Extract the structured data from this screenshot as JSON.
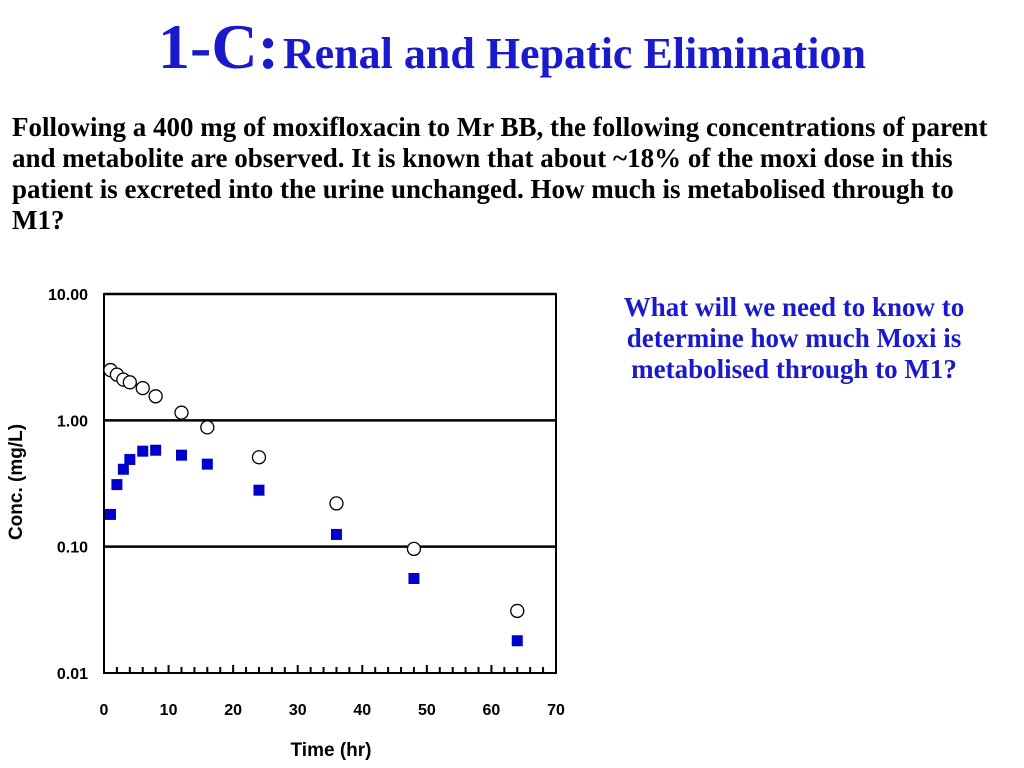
{
  "slide": {
    "title_number": "1-C:",
    "title_text": "Renal and Hepatic Elimination",
    "question": "Following a 400 mg of moxifloxacin to Mr BB, the following concentrations of parent and metabolite are observed.  It is known that about ~18% of the moxi dose in this patient is excreted into the urine unchanged.  How much is metabolised through to M1?",
    "prompt": "What will we need to know to determine how much Moxi is metabolised through to M1?"
  },
  "colors": {
    "title": "#1a1acc",
    "metabolite_marker": "#0000cc",
    "parent_marker": "#000000"
  },
  "chart_data": {
    "type": "scatter",
    "xlabel": "Time (hr)",
    "ylabel": "Conc. (mg/L)",
    "xlim": [
      0,
      70
    ],
    "ylim": [
      0.01,
      10
    ],
    "y_scale": "log",
    "x_ticks": [
      "0",
      "10",
      "20",
      "30",
      "40",
      "50",
      "60",
      "70"
    ],
    "y_ticks": [
      "0.01",
      "0.10",
      "1.00",
      "10.00"
    ],
    "gridlines_y": [
      0.1,
      1,
      10
    ],
    "legend": "none",
    "series": [
      {
        "marker": "open-circle",
        "x": [
          1,
          2,
          3,
          4,
          6,
          8,
          12,
          16,
          24,
          36,
          48,
          64
        ],
        "y": [
          2.5,
          2.3,
          2.1,
          2.0,
          1.8,
          1.55,
          1.15,
          0.88,
          0.51,
          0.22,
          0.096,
          0.031
        ]
      },
      {
        "marker": "filled-square",
        "x": [
          1,
          2,
          3,
          4,
          6,
          8,
          12,
          16,
          24,
          36,
          48,
          64
        ],
        "y": [
          0.18,
          0.31,
          0.41,
          0.49,
          0.57,
          0.58,
          0.53,
          0.45,
          0.28,
          0.125,
          0.056,
          0.018
        ]
      }
    ]
  }
}
